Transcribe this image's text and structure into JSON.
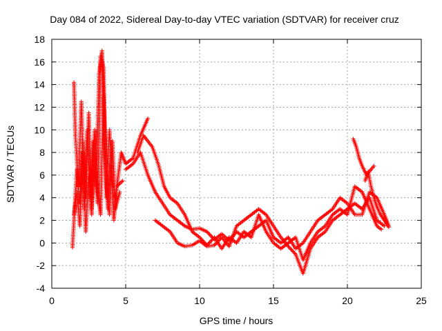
{
  "chart_data": {
    "type": "scatter",
    "title": "Day 084 of 2022, Sidereal Day-to-day VTEC variation (SDTVAR) for receiver cruz",
    "xlabel": "GPS time / hours",
    "ylabel": "SDTVAR / TECUs",
    "xlim": [
      0,
      25
    ],
    "ylim": [
      -4,
      18
    ],
    "xticks": [
      0,
      5,
      10,
      15,
      20,
      25
    ],
    "yticks": [
      -4,
      -2,
      0,
      2,
      4,
      6,
      8,
      10,
      12,
      14,
      16,
      18
    ],
    "grid": true,
    "marker": "+",
    "series": [
      {
        "name": "SDTVAR",
        "color": "#ff0000",
        "traces": [
          [
            [
              1.4,
              -0.4
            ],
            [
              1.5,
              2.0
            ],
            [
              1.7,
              6.5
            ],
            [
              1.9,
              3.5
            ],
            [
              2.1,
              9.0
            ],
            [
              2.3,
              4.0
            ],
            [
              2.5,
              11.5
            ],
            [
              2.7,
              3.0
            ],
            [
              2.9,
              8.0
            ],
            [
              3.1,
              3.5
            ],
            [
              3.3,
              16.5
            ],
            [
              3.5,
              15.5
            ],
            [
              3.7,
              4.0
            ],
            [
              3.9,
              10.0
            ],
            [
              4.1,
              5.5
            ],
            [
              4.3,
              4.0
            ],
            [
              4.5,
              6.0
            ],
            [
              4.7,
              8.0
            ],
            [
              5.0,
              7.0
            ],
            [
              5.5,
              7.5
            ],
            [
              6.0,
              9.5
            ],
            [
              6.5,
              11.0
            ]
          ],
          [
            [
              1.5,
              14.2
            ],
            [
              1.6,
              9.5
            ],
            [
              1.8,
              5.0
            ],
            [
              2.0,
              12.5
            ],
            [
              2.2,
              3.0
            ],
            [
              2.4,
              10.0
            ],
            [
              2.6,
              4.0
            ],
            [
              2.8,
              9.0
            ],
            [
              3.0,
              5.0
            ],
            [
              3.2,
              15.0
            ],
            [
              3.4,
              17.0
            ],
            [
              3.6,
              8.0
            ],
            [
              3.8,
              3.0
            ],
            [
              4.0,
              7.0
            ],
            [
              4.2,
              2.0
            ],
            [
              4.4,
              5.0
            ],
            [
              4.8,
              5.5
            ]
          ],
          [
            [
              1.5,
              2.5
            ],
            [
              1.7,
              4.5
            ],
            [
              1.9,
              1.5
            ],
            [
              2.1,
              8.0
            ],
            [
              2.3,
              1.0
            ],
            [
              2.5,
              6.0
            ],
            [
              2.7,
              2.5
            ],
            [
              2.9,
              10.0
            ],
            [
              3.1,
              4.5
            ],
            [
              3.3,
              2.5
            ],
            [
              3.5,
              13.0
            ],
            [
              3.7,
              5.0
            ],
            [
              3.9,
              2.5
            ],
            [
              4.1,
              9.0
            ],
            [
              4.3,
              3.0
            ],
            [
              4.6,
              4.5
            ]
          ],
          [
            [
              5.0,
              6.5
            ],
            [
              5.5,
              7.0
            ],
            [
              6.0,
              8.0
            ],
            [
              6.5,
              6.0
            ],
            [
              7.0,
              4.5
            ],
            [
              7.5,
              3.5
            ],
            [
              8.0,
              2.5
            ],
            [
              8.5,
              2.0
            ],
            [
              9.0,
              1.5
            ],
            [
              9.5,
              1.2
            ],
            [
              10.0,
              1.3
            ],
            [
              10.5,
              1.0
            ],
            [
              11.0,
              0.3
            ],
            [
              11.5,
              0.8
            ],
            [
              12.0,
              0.2
            ],
            [
              12.5,
              1.0
            ],
            [
              13.0,
              0.5
            ],
            [
              13.5,
              1.0
            ],
            [
              14.0,
              1.5
            ],
            [
              14.5,
              2.0
            ],
            [
              15.0,
              0.5
            ],
            [
              15.5,
              0.0
            ],
            [
              16.0,
              0.5
            ],
            [
              16.5,
              -0.5
            ],
            [
              17.0,
              0.0
            ],
            [
              17.5,
              1.0
            ],
            [
              18.0,
              2.0
            ],
            [
              18.5,
              2.5
            ],
            [
              19.0,
              3.0
            ],
            [
              19.5,
              4.0
            ],
            [
              20.0,
              3.5
            ],
            [
              20.5,
              2.5
            ],
            [
              21.0,
              2.5
            ],
            [
              21.5,
              4.5
            ],
            [
              22.0,
              4.0
            ],
            [
              22.5,
              2.5
            ],
            [
              22.8,
              1.5
            ]
          ],
          [
            [
              5.8,
              8.0
            ],
            [
              6.2,
              9.5
            ],
            [
              6.8,
              8.5
            ],
            [
              7.2,
              7.0
            ],
            [
              7.6,
              5.0
            ],
            [
              8.0,
              4.0
            ],
            [
              8.5,
              3.5
            ],
            [
              9.0,
              2.5
            ],
            [
              9.5,
              1.0
            ],
            [
              10.0,
              0.5
            ],
            [
              10.5,
              -0.2
            ],
            [
              11.0,
              0.5
            ],
            [
              11.5,
              -0.5
            ],
            [
              12.0,
              0.5
            ],
            [
              12.5,
              0.0
            ],
            [
              13.0,
              1.0
            ],
            [
              13.5,
              0.5
            ],
            [
              14.0,
              2.5
            ],
            [
              14.5,
              1.0
            ],
            [
              15.0,
              0.0
            ],
            [
              15.5,
              -0.5
            ],
            [
              16.0,
              0.0
            ],
            [
              16.5,
              0.5
            ],
            [
              17.0,
              -1.5
            ],
            [
              17.5,
              0.0
            ],
            [
              18.0,
              1.0
            ],
            [
              18.5,
              1.5
            ],
            [
              19.0,
              2.5
            ],
            [
              19.5,
              3.0
            ],
            [
              20.0,
              2.5
            ],
            [
              20.5,
              5.0
            ],
            [
              21.0,
              4.5
            ],
            [
              21.5,
              3.0
            ],
            [
              22.0,
              1.5
            ],
            [
              22.3,
              1.2
            ]
          ],
          [
            [
              7.0,
              2.0
            ],
            [
              7.5,
              1.5
            ],
            [
              8.0,
              1.0
            ],
            [
              8.5,
              0.0
            ],
            [
              9.0,
              -0.3
            ],
            [
              9.5,
              -0.2
            ],
            [
              10.0,
              0.2
            ],
            [
              10.5,
              -0.3
            ],
            [
              11.0,
              -0.2
            ],
            [
              11.5,
              0.5
            ],
            [
              12.0,
              -0.3
            ],
            [
              12.5,
              1.5
            ],
            [
              13.0,
              2.0
            ],
            [
              13.5,
              2.5
            ],
            [
              14.0,
              3.0
            ],
            [
              14.5,
              2.5
            ],
            [
              15.0,
              1.5
            ],
            [
              15.5,
              0.5
            ],
            [
              16.0,
              -0.3
            ],
            [
              16.5,
              -1.0
            ],
            [
              17.0,
              -2.7
            ],
            [
              17.5,
              -0.5
            ],
            [
              18.0,
              0.5
            ],
            [
              18.5,
              1.0
            ],
            [
              19.0,
              2.0
            ],
            [
              19.5,
              2.5
            ],
            [
              20.0,
              3.0
            ],
            [
              20.5,
              3.5
            ],
            [
              21.0,
              3.0
            ],
            [
              21.5,
              4.0
            ],
            [
              22.0,
              2.0
            ],
            [
              22.5,
              1.5
            ]
          ],
          [
            [
              20.4,
              9.2
            ],
            [
              20.6,
              8.5
            ],
            [
              20.8,
              7.5
            ],
            [
              21.0,
              6.8
            ],
            [
              21.3,
              6.0
            ],
            [
              21.6,
              6.5
            ],
            [
              21.8,
              6.8
            ]
          ],
          [
            [
              21.2,
              5.5
            ],
            [
              21.4,
              6.3
            ],
            [
              21.6,
              5.0
            ],
            [
              21.8,
              4.0
            ],
            [
              22.0,
              3.2
            ],
            [
              22.2,
              2.6
            ],
            [
              22.4,
              2.2
            ],
            [
              22.6,
              1.8
            ],
            [
              22.8,
              1.4
            ]
          ]
        ]
      }
    ]
  }
}
